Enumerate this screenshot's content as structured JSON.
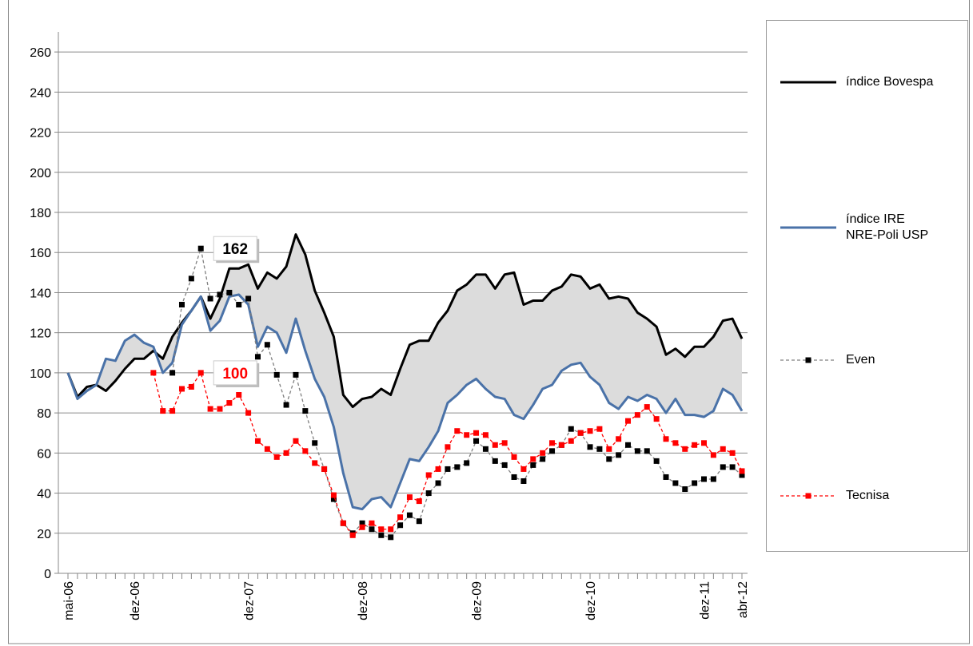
{
  "chart_data": {
    "type": "line",
    "categories": [
      "mai-06",
      null,
      null,
      null,
      null,
      null,
      null,
      "dez-06",
      null,
      null,
      null,
      null,
      null,
      null,
      null,
      null,
      null,
      null,
      null,
      "dez-07",
      null,
      null,
      null,
      null,
      null,
      null,
      null,
      null,
      null,
      null,
      null,
      "dez-08",
      null,
      null,
      null,
      null,
      null,
      null,
      null,
      null,
      null,
      null,
      null,
      "dez-09",
      null,
      null,
      null,
      null,
      null,
      null,
      null,
      null,
      null,
      null,
      null,
      "dez-10",
      null,
      null,
      null,
      null,
      null,
      null,
      null,
      null,
      null,
      null,
      null,
      "dez-11",
      null,
      null,
      null,
      "abr-12"
    ],
    "series": [
      {
        "name": "índice Bovespa",
        "color": "#000000",
        "line_style": "solid",
        "values": [
          100,
          88,
          93,
          94,
          91,
          96,
          102,
          107,
          107,
          111,
          107,
          118,
          125,
          131,
          138,
          127,
          137,
          152,
          152,
          154,
          142,
          150,
          147,
          153,
          169,
          159,
          141,
          130,
          118,
          89,
          83,
          87,
          88,
          92,
          89,
          102,
          114,
          116,
          116,
          125,
          131,
          141,
          144,
          149,
          149,
          142,
          149,
          150,
          134,
          136,
          136,
          141,
          143,
          149,
          148,
          142,
          144,
          137,
          138,
          137,
          130,
          127,
          123,
          109,
          112,
          108,
          113,
          113,
          118,
          126,
          127,
          117
        ]
      },
      {
        "name": "índice IRE\nNRE-Poli USP",
        "color": "#4a72a8",
        "line_style": "solid",
        "values": [
          100,
          87,
          91,
          94,
          107,
          106,
          116,
          119,
          115,
          113,
          100,
          105,
          124,
          131,
          138,
          121,
          126,
          138,
          139,
          134,
          113,
          123,
          120,
          110,
          127,
          111,
          97,
          88,
          73,
          50,
          33,
          32,
          37,
          38,
          33,
          45,
          57,
          56,
          63,
          71,
          85,
          89,
          94,
          97,
          92,
          88,
          87,
          79,
          77,
          84,
          92,
          94,
          101,
          104,
          105,
          98,
          94,
          85,
          82,
          88,
          86,
          89,
          87,
          80,
          87,
          79,
          79,
          78,
          81,
          92,
          89,
          81
        ]
      },
      {
        "name": "Even",
        "color": "#000000",
        "line_color": "#808080",
        "line_style": "dashed",
        "marker": "square",
        "values": [
          null,
          null,
          null,
          null,
          null,
          null,
          null,
          null,
          null,
          null,
          null,
          100,
          134,
          147,
          162,
          137,
          139,
          140,
          134,
          137,
          108,
          114,
          99,
          84,
          99,
          81,
          65,
          52,
          37,
          25,
          20,
          25,
          22,
          19,
          18,
          24,
          29,
          26,
          40,
          45,
          52,
          53,
          55,
          66,
          62,
          56,
          54,
          48,
          46,
          54,
          57,
          61,
          64,
          72,
          70,
          63,
          62,
          57,
          59,
          64,
          61,
          61,
          56,
          48,
          45,
          42,
          45,
          47,
          47,
          53,
          53,
          49
        ],
        "value_labels": [
          null,
          null,
          null,
          null,
          null,
          null,
          null,
          null,
          null,
          null,
          null,
          null,
          null,
          null,
          "162",
          null,
          null,
          null,
          null,
          null,
          null,
          null,
          null,
          null,
          null,
          null,
          null,
          null,
          null,
          null,
          null,
          null,
          null,
          null,
          null,
          null,
          null,
          null,
          null,
          null,
          null,
          null,
          null,
          null,
          null,
          null,
          null,
          null,
          null,
          null,
          null,
          null,
          null,
          null,
          null,
          null,
          null,
          null,
          null,
          null,
          null,
          null,
          null,
          null,
          null,
          null,
          null,
          null,
          null,
          null,
          null,
          null
        ]
      },
      {
        "name": "Tecnisa",
        "color": "#ff0000",
        "line_color": "#ff0000",
        "line_style": "dashed",
        "marker": "square",
        "values": [
          null,
          null,
          null,
          null,
          null,
          null,
          null,
          null,
          null,
          100,
          81,
          81,
          92,
          93,
          100,
          82,
          82,
          85,
          89,
          80,
          66,
          62,
          58,
          60,
          66,
          61,
          55,
          52,
          39,
          25,
          19,
          23,
          25,
          22,
          22,
          28,
          38,
          36,
          49,
          52,
          63,
          71,
          69,
          70,
          69,
          64,
          65,
          58,
          52,
          57,
          60,
          65,
          64,
          66,
          70,
          71,
          72,
          62,
          67,
          76,
          79,
          83,
          77,
          67,
          65,
          62,
          64,
          65,
          59,
          62,
          60,
          51
        ],
        "value_labels": [
          null,
          null,
          null,
          null,
          null,
          null,
          null,
          null,
          null,
          null,
          null,
          null,
          null,
          null,
          "100",
          null,
          null,
          null,
          null,
          null,
          null,
          null,
          null,
          null,
          null,
          null,
          null,
          null,
          null,
          null,
          null,
          null,
          null,
          null,
          null,
          null,
          null,
          null,
          null,
          null,
          null,
          null,
          null,
          null,
          null,
          null,
          null,
          null,
          null,
          null,
          null,
          null,
          null,
          null,
          null,
          null,
          null,
          null,
          null,
          null,
          null,
          null,
          null,
          null,
          null,
          null,
          null,
          null,
          null,
          null,
          null,
          null
        ]
      }
    ],
    "band_color": "#dcdcdc",
    "ylim": [
      0,
      270
    ],
    "yticks": [
      0,
      20,
      40,
      60,
      80,
      100,
      120,
      140,
      160,
      180,
      200,
      220,
      240,
      260
    ],
    "grid": true,
    "legend": "right"
  }
}
